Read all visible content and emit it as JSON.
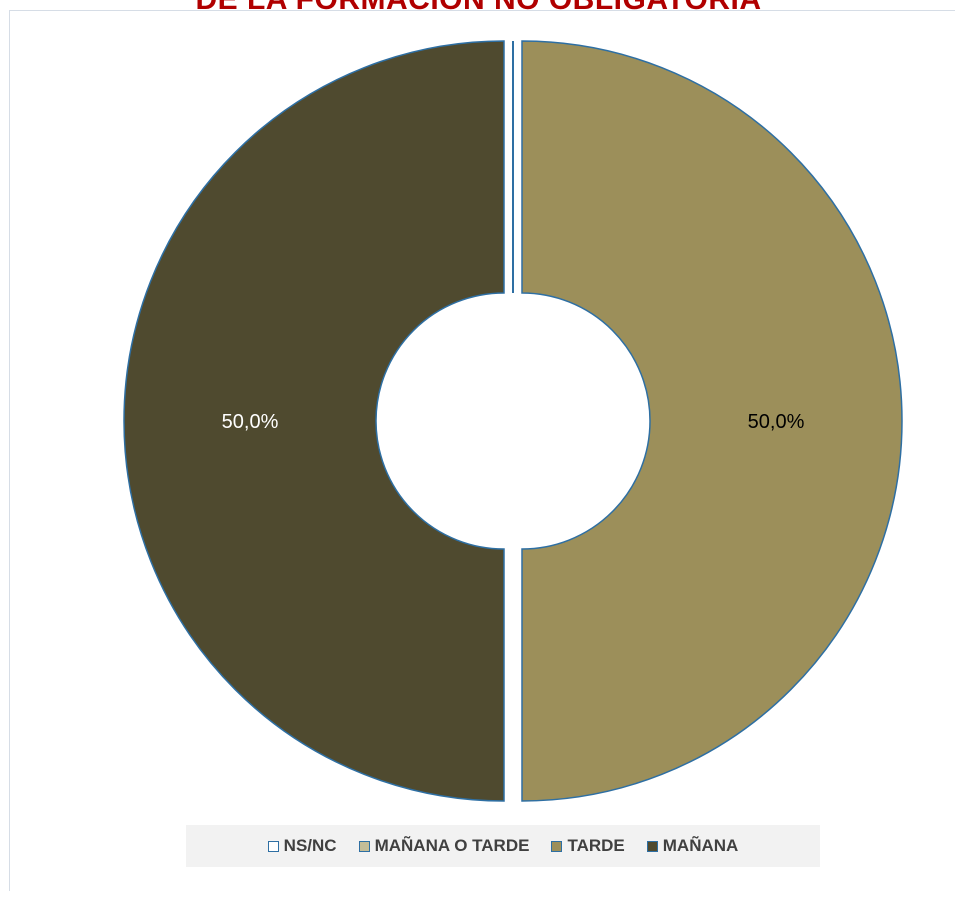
{
  "title": "DE LA FORMACIÓN NO OBLIGATORIA",
  "chart_data": {
    "type": "pie",
    "donut": true,
    "categories": [
      "NS/NC",
      "MAÑANA O TARDE",
      "TARDE",
      "MAÑANA"
    ],
    "values": [
      0,
      0,
      50.0,
      50.0
    ],
    "data_labels": [
      "",
      "",
      "50,0%",
      "50,0%"
    ],
    "colors": [
      "#ffffff",
      "#c4bd97",
      "#9c8f5a",
      "#4f4a2f"
    ],
    "label_colors": [
      "#000000",
      "#000000",
      "#000000",
      "#ffffff"
    ],
    "slice_border_color": "#2e6fa3",
    "legend_position": "bottom"
  }
}
